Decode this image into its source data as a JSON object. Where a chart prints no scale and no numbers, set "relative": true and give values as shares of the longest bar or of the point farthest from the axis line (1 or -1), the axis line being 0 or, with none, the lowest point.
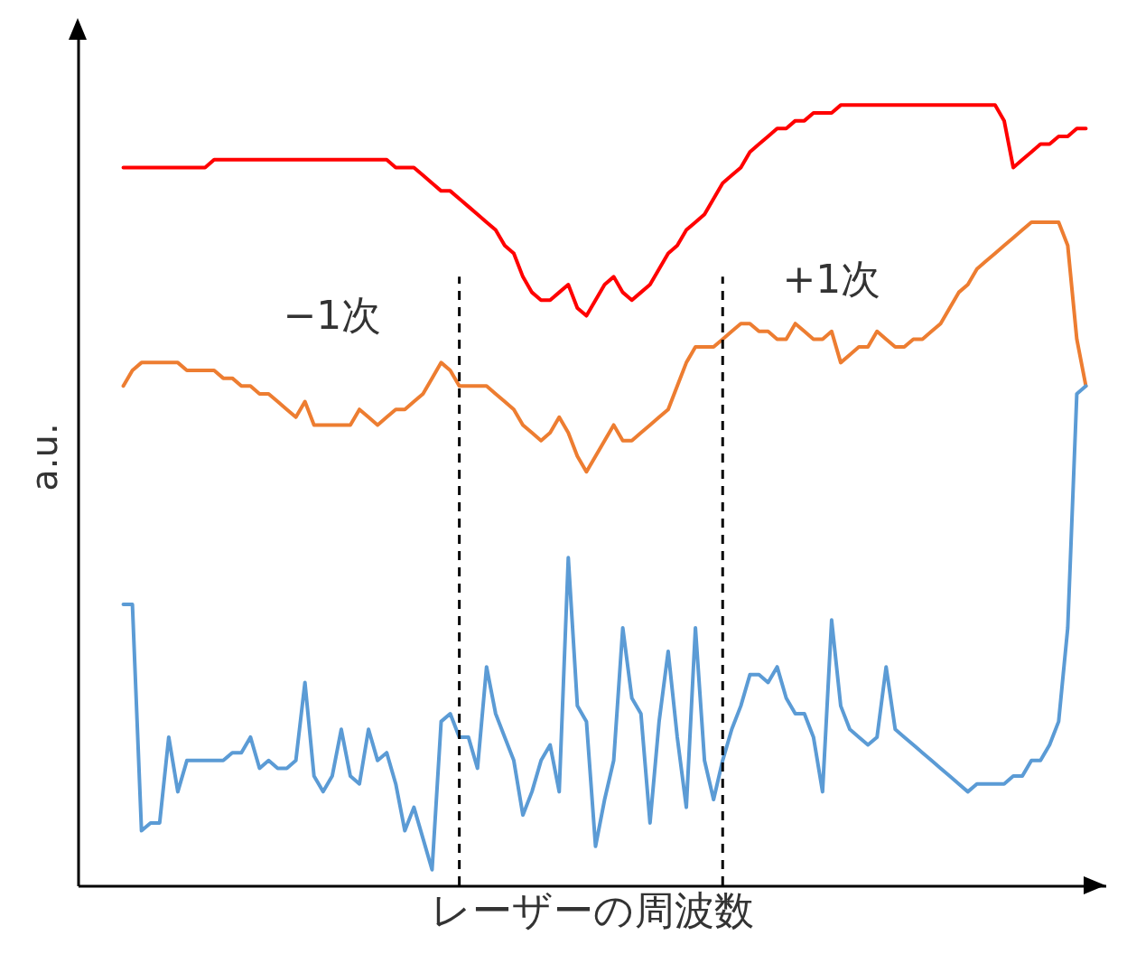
{
  "chart_data": {
    "type": "line",
    "relative": true,
    "xlabel": "レーザーの周波数",
    "ylabel": "a.u.",
    "grid": false,
    "marker": "none",
    "line_style": "solid",
    "categories": [
      null,
      null,
      null,
      null,
      null,
      null,
      null,
      null,
      null,
      null,
      null,
      null,
      null,
      null,
      null,
      null,
      null,
      null,
      null,
      null,
      null,
      null,
      null,
      null,
      null,
      null,
      null,
      null,
      null,
      null,
      null,
      null,
      null,
      null,
      null,
      null,
      null,
      null,
      null,
      null,
      null,
      null,
      null,
      null,
      null,
      null,
      null,
      null,
      null,
      null,
      null,
      null,
      null,
      null,
      null,
      null,
      null,
      null,
      null,
      null,
      null,
      null,
      null,
      null,
      null,
      null,
      null,
      null,
      null,
      null,
      null,
      null,
      null,
      null,
      null,
      null,
      null,
      null,
      null,
      null,
      null,
      null,
      null,
      null,
      null,
      null,
      null,
      null,
      null,
      null,
      null,
      null,
      null,
      null,
      null,
      null,
      null,
      null,
      null,
      null,
      null,
      null,
      null,
      null,
      null,
      null,
      null
    ],
    "series": [
      {
        "color": "#ff0000",
        "values": [
          0.92,
          0.92,
          0.92,
          0.92,
          0.92,
          0.92,
          0.92,
          0.92,
          0.92,
          0.92,
          0.93,
          0.93,
          0.93,
          0.93,
          0.93,
          0.93,
          0.93,
          0.93,
          0.93,
          0.93,
          0.93,
          0.93,
          0.93,
          0.93,
          0.93,
          0.93,
          0.93,
          0.93,
          0.93,
          0.93,
          0.92,
          0.92,
          0.92,
          0.91,
          0.9,
          0.89,
          0.89,
          0.88,
          0.87,
          0.86,
          0.85,
          0.84,
          0.82,
          0.81,
          0.78,
          0.76,
          0.75,
          0.75,
          0.76,
          0.77,
          0.74,
          0.73,
          0.75,
          0.77,
          0.78,
          0.76,
          0.75,
          0.76,
          0.77,
          0.79,
          0.81,
          0.82,
          0.84,
          0.85,
          0.86,
          0.88,
          0.9,
          0.91,
          0.92,
          0.94,
          0.95,
          0.96,
          0.97,
          0.97,
          0.98,
          0.98,
          0.99,
          0.99,
          0.99,
          1.0,
          1.0,
          1.0,
          1.0,
          1.0,
          1.0,
          1.0,
          1.0,
          1.0,
          1.0,
          1.0,
          1.0,
          1.0,
          1.0,
          1.0,
          1.0,
          1.0,
          1.0,
          0.98,
          0.92,
          0.93,
          0.94,
          0.95,
          0.95,
          0.96,
          0.96,
          0.97,
          0.97
        ]
      },
      {
        "color": "#ed7d31",
        "values": [
          0.64,
          0.66,
          0.67,
          0.67,
          0.67,
          0.67,
          0.67,
          0.66,
          0.66,
          0.66,
          0.66,
          0.65,
          0.65,
          0.64,
          0.64,
          0.63,
          0.63,
          0.62,
          0.61,
          0.6,
          0.62,
          0.59,
          0.59,
          0.59,
          0.59,
          0.59,
          0.61,
          0.6,
          0.59,
          0.6,
          0.61,
          0.61,
          0.62,
          0.63,
          0.65,
          0.67,
          0.66,
          0.64,
          0.64,
          0.64,
          0.64,
          0.63,
          0.62,
          0.61,
          0.59,
          0.58,
          0.57,
          0.58,
          0.6,
          0.58,
          0.55,
          0.53,
          0.55,
          0.57,
          0.59,
          0.57,
          0.57,
          0.58,
          0.59,
          0.6,
          0.61,
          0.64,
          0.67,
          0.69,
          0.69,
          0.69,
          0.7,
          0.71,
          0.72,
          0.72,
          0.71,
          0.71,
          0.7,
          0.7,
          0.72,
          0.71,
          0.7,
          0.7,
          0.71,
          0.67,
          0.68,
          0.69,
          0.69,
          0.71,
          0.7,
          0.69,
          0.69,
          0.7,
          0.7,
          0.71,
          0.72,
          0.74,
          0.76,
          0.77,
          0.79,
          0.8,
          0.81,
          0.82,
          0.83,
          0.84,
          0.85,
          0.85,
          0.85,
          0.85,
          0.82,
          0.7,
          0.64
        ]
      },
      {
        "color": "#5b9bd5",
        "values": [
          0.36,
          0.36,
          0.07,
          0.08,
          0.08,
          0.19,
          0.12,
          0.16,
          0.16,
          0.16,
          0.16,
          0.16,
          0.17,
          0.17,
          0.19,
          0.15,
          0.16,
          0.15,
          0.15,
          0.16,
          0.26,
          0.14,
          0.12,
          0.14,
          0.2,
          0.14,
          0.13,
          0.2,
          0.16,
          0.17,
          0.13,
          0.07,
          0.1,
          0.06,
          0.02,
          0.21,
          0.22,
          0.19,
          0.19,
          0.15,
          0.28,
          0.22,
          0.19,
          0.16,
          0.09,
          0.12,
          0.16,
          0.18,
          0.12,
          0.42,
          0.23,
          0.21,
          0.05,
          0.11,
          0.16,
          0.33,
          0.24,
          0.22,
          0.08,
          0.21,
          0.3,
          0.19,
          0.1,
          0.33,
          0.16,
          0.11,
          0.16,
          0.2,
          0.23,
          0.27,
          0.27,
          0.26,
          0.28,
          0.24,
          0.22,
          0.22,
          0.19,
          0.12,
          0.34,
          0.23,
          0.2,
          0.19,
          0.18,
          0.19,
          0.28,
          0.2,
          0.19,
          0.18,
          0.17,
          0.16,
          0.15,
          0.14,
          0.13,
          0.12,
          0.13,
          0.13,
          0.13,
          0.13,
          0.14,
          0.14,
          0.16,
          0.16,
          0.18,
          0.21,
          0.33,
          0.63,
          0.64
        ]
      }
    ],
    "annotations": [
      "−1次",
      "+1次"
    ]
  }
}
